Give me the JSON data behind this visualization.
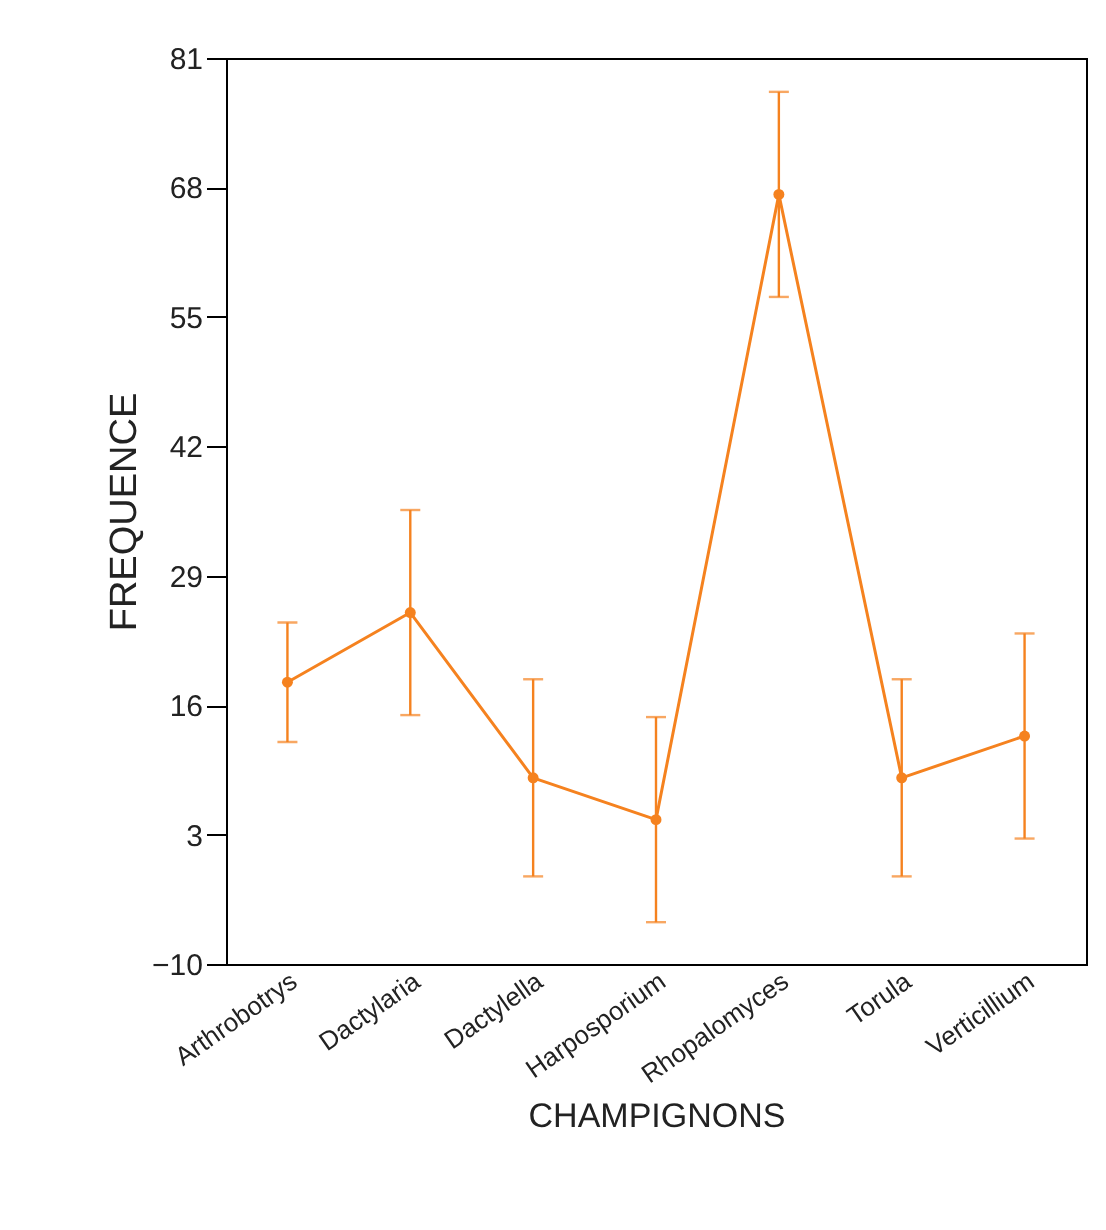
{
  "chart_data": {
    "type": "line",
    "xlabel": "CHAMPIGNONS",
    "ylabel": "FREQUENCE",
    "categories": [
      "Arthrobotrys",
      "Dactylaria",
      "Dactylella",
      "Harposporium",
      "Rhopalomyces",
      "Torula",
      "Verticillium"
    ],
    "series": [
      {
        "color": "#f5821f",
        "values": [
          18.3,
          25.3,
          8.7,
          4.5,
          67.3,
          8.7,
          12.9
        ],
        "errors": [
          6,
          10.3,
          9.9,
          10.3,
          10.3,
          9.9,
          10.3
        ]
      }
    ],
    "ylim": [
      -10,
      81
    ],
    "yticks": [
      -10,
      3,
      16,
      29,
      42,
      55,
      68,
      81
    ],
    "marker": "circle",
    "grid": false,
    "legend": false
  }
}
